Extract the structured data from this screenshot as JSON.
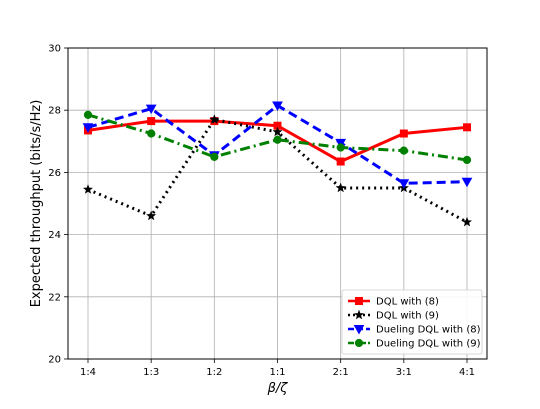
{
  "chart_data": {
    "type": "line",
    "title": "",
    "xlabel": "β/ζ",
    "ylabel": "Expected throughput (bits/s/Hz)",
    "categories": [
      "1:4",
      "1:3",
      "1:2",
      "1:1",
      "2:1",
      "3:1",
      "4:1"
    ],
    "ylim": [
      20,
      30
    ],
    "yticks": [
      20,
      22,
      24,
      26,
      28,
      30
    ],
    "grid": true,
    "legend_position": "lower-right",
    "series": [
      {
        "name": "DQL with (8)",
        "color": "#ff0000",
        "style": "solid",
        "marker": "square",
        "values": [
          27.35,
          27.65,
          27.65,
          27.5,
          26.35,
          27.25,
          27.45
        ]
      },
      {
        "name": "DQL with (9)",
        "color": "#000000",
        "style": "dotted",
        "marker": "star",
        "values": [
          25.45,
          24.6,
          27.7,
          27.3,
          25.5,
          25.5,
          24.4
        ]
      },
      {
        "name": "Dueling DQL with (8)",
        "color": "#0000ff",
        "style": "dashed",
        "marker": "triangle-down",
        "values": [
          27.45,
          28.05,
          26.55,
          28.15,
          26.95,
          25.65,
          25.7
        ]
      },
      {
        "name": "Dueling DQL with (9)",
        "color": "#008000",
        "style": "dashdot",
        "marker": "circle",
        "values": [
          27.85,
          27.25,
          26.5,
          27.05,
          26.8,
          26.7,
          26.4
        ]
      }
    ]
  }
}
